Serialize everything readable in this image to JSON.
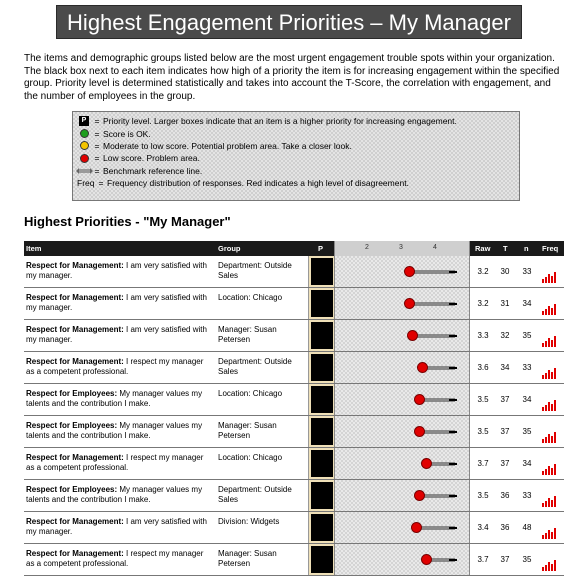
{
  "banner_title": "Highest Engagement Priorities – My Manager",
  "intro_text": "The items and demographic groups listed below are the most urgent engagement trouble spots within your organization. The black box next to each item indicates how high of a priority the item is for increasing engagement within the specified group. Priority level is determined statistically and takes into account the T-Score, the correlation with engagement, and the number of employees in the group.",
  "legend": {
    "items": [
      {
        "icon": "priority-box-icon",
        "symbol": "P",
        "eq": "=",
        "text": "Priority level. Larger boxes indicate that an item is a higher priority for increasing engagement."
      },
      {
        "icon": "green-circle-icon",
        "color": "#1e9e1e",
        "eq": "=",
        "text": "Score is OK."
      },
      {
        "icon": "yellow-circle-icon",
        "color": "#f3c400",
        "eq": "=",
        "text": "Moderate to low score. Potential problem area. Take a closer look."
      },
      {
        "icon": "red-circle-icon",
        "color": "#e00000",
        "eq": "=",
        "text": "Low score. Problem area."
      },
      {
        "icon": "benchmark-line-icon",
        "eq": "=",
        "text": "Benchmark reference line."
      },
      {
        "icon": "freq-label",
        "label": "Freq",
        "eq": "=",
        "text": "Frequency distribution of responses. Red indicates a high level of disagreement."
      }
    ]
  },
  "section_title": "Highest Priorities - \"My Manager\"",
  "table": {
    "headers": {
      "item": "Item",
      "group": "Group",
      "p": "P",
      "raw": "Raw",
      "t": "T",
      "n": "n",
      "freq": "Freq"
    },
    "scale_ticks": [
      "2",
      "3",
      "4"
    ],
    "rows": [
      {
        "category": "Respect for Management:",
        "text": "I am very satisfied with my manager.",
        "group": "Department: Outside Sales",
        "raw": "3.2",
        "t": "30",
        "n": "33",
        "score": 3.2
      },
      {
        "category": "Respect for Management:",
        "text": "I am very satisfied with my manager.",
        "group": "Location: Chicago",
        "raw": "3.2",
        "t": "31",
        "n": "34",
        "score": 3.2
      },
      {
        "category": "Respect for Management:",
        "text": "I am very satisfied with my manager.",
        "group": "Manager: Susan Petersen",
        "raw": "3.3",
        "t": "32",
        "n": "35",
        "score": 3.3
      },
      {
        "category": "Respect for Management:",
        "text": "I respect my manager as a competent professional.",
        "group": "Department: Outside Sales",
        "raw": "3.6",
        "t": "34",
        "n": "33",
        "score": 3.6
      },
      {
        "category": "Respect for Employees:",
        "text": "My manager values my talents and the contribution I make.",
        "group": "Location: Chicago",
        "raw": "3.5",
        "t": "37",
        "n": "34",
        "score": 3.5
      },
      {
        "category": "Respect for Employees:",
        "text": "My manager values my talents and the contribution I make.",
        "group": "Manager: Susan Petersen",
        "raw": "3.5",
        "t": "37",
        "n": "35",
        "score": 3.5
      },
      {
        "category": "Respect for Management:",
        "text": "I respect my manager as a competent professional.",
        "group": "Location: Chicago",
        "raw": "3.7",
        "t": "37",
        "n": "34",
        "score": 3.7
      },
      {
        "category": "Respect for Employees:",
        "text": "My manager values my talents and the contribution I make.",
        "group": "Department: Outside Sales",
        "raw": "3.5",
        "t": "36",
        "n": "33",
        "score": 3.5
      },
      {
        "category": "Respect for Management:",
        "text": "I am very satisfied with my manager.",
        "group": "Division: Widgets",
        "raw": "3.4",
        "t": "36",
        "n": "48",
        "score": 3.4
      },
      {
        "category": "Respect for Management:",
        "text": "I respect my manager as a competent professional.",
        "group": "Manager: Susan Petersen",
        "raw": "3.7",
        "t": "37",
        "n": "35",
        "score": 3.7
      }
    ]
  }
}
